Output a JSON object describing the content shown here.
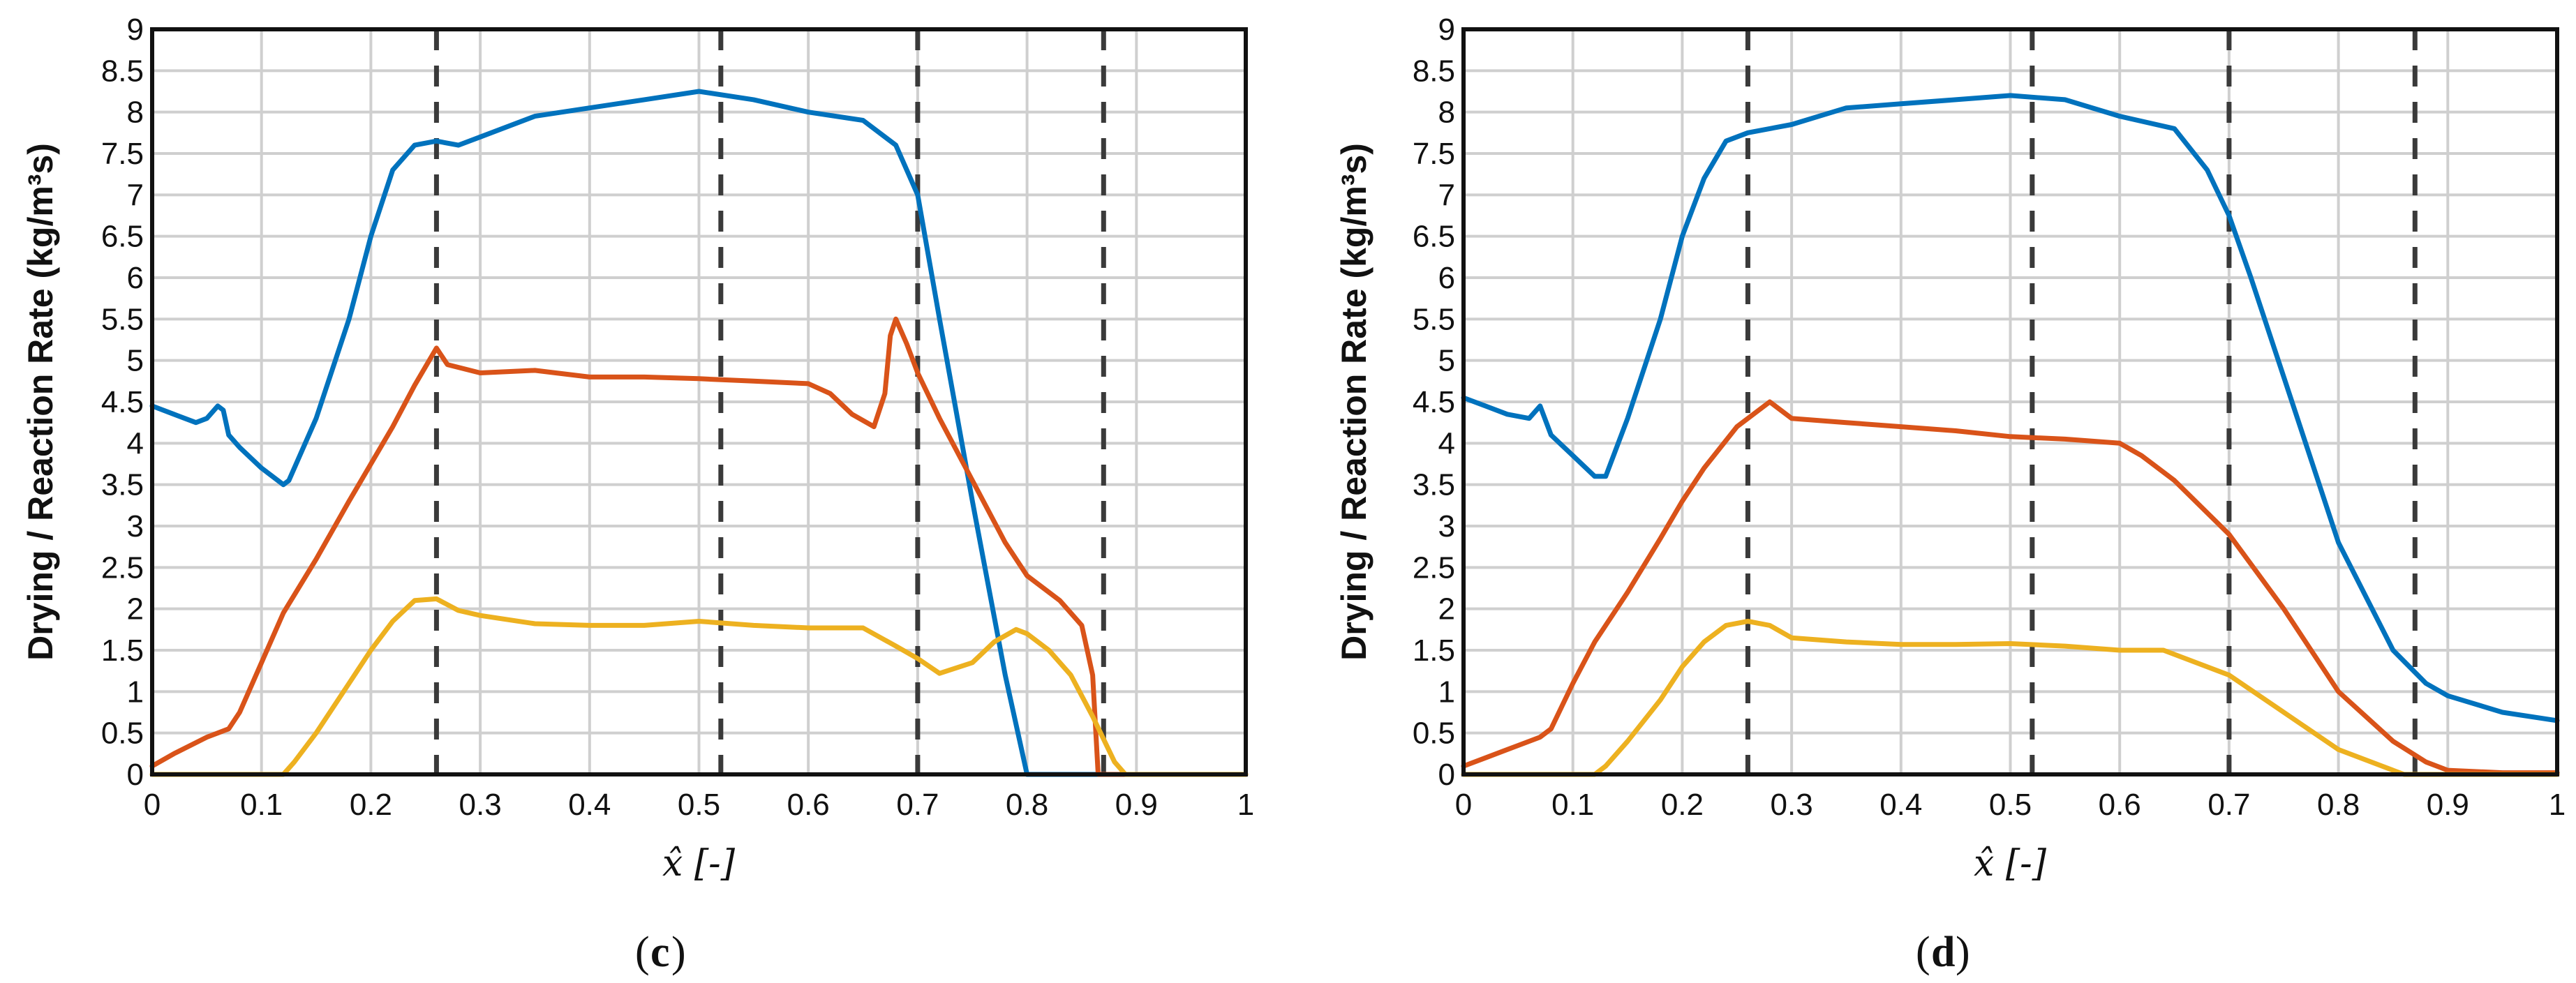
{
  "chart_data": [
    {
      "type": "line",
      "panel_label": "c",
      "xlabel": "x̂ [-]",
      "ylabel": "Drying / Reaction Rate (kg/m³s)",
      "xlim": [
        0,
        1
      ],
      "ylim": [
        0,
        9
      ],
      "xticks": [
        0,
        0.1,
        0.2,
        0.3,
        0.4,
        0.5,
        0.6,
        0.7,
        0.8,
        0.9,
        1
      ],
      "yticks": [
        0,
        0.5,
        1,
        1.5,
        2,
        2.5,
        3,
        3.5,
        4,
        4.5,
        5,
        5.5,
        6,
        6.5,
        7,
        7.5,
        8,
        8.5,
        9
      ],
      "grid": true,
      "vertical_dashed_lines": [
        0.26,
        0.52,
        0.7,
        0.87
      ],
      "series": [
        {
          "color": "#0072BD",
          "x": [
            0,
            0.02,
            0.04,
            0.05,
            0.06,
            0.065,
            0.07,
            0.08,
            0.1,
            0.12,
            0.125,
            0.15,
            0.18,
            0.2,
            0.22,
            0.24,
            0.26,
            0.28,
            0.3,
            0.35,
            0.4,
            0.45,
            0.5,
            0.55,
            0.6,
            0.65,
            0.68,
            0.7,
            0.72,
            0.75,
            0.78,
            0.8,
            0.85,
            0.9,
            1.0
          ],
          "y": [
            4.45,
            4.35,
            4.25,
            4.3,
            4.45,
            4.4,
            4.1,
            3.95,
            3.7,
            3.5,
            3.55,
            4.3,
            5.5,
            6.5,
            7.3,
            7.6,
            7.65,
            7.6,
            7.7,
            7.95,
            8.05,
            8.15,
            8.25,
            8.15,
            8.0,
            7.9,
            7.6,
            7.0,
            5.5,
            3.3,
            1.2,
            0.0,
            0.0,
            0.0,
            0.0
          ]
        },
        {
          "color": "#D95319",
          "x": [
            0,
            0.02,
            0.05,
            0.07,
            0.08,
            0.1,
            0.12,
            0.15,
            0.18,
            0.2,
            0.22,
            0.24,
            0.26,
            0.27,
            0.3,
            0.35,
            0.4,
            0.45,
            0.5,
            0.55,
            0.6,
            0.62,
            0.64,
            0.66,
            0.67,
            0.675,
            0.68,
            0.69,
            0.7,
            0.72,
            0.75,
            0.78,
            0.8,
            0.83,
            0.85,
            0.86,
            0.865,
            0.87,
            0.9,
            1.0
          ],
          "y": [
            0.1,
            0.25,
            0.45,
            0.55,
            0.75,
            1.35,
            1.95,
            2.6,
            3.3,
            3.75,
            4.2,
            4.7,
            5.15,
            4.95,
            4.85,
            4.88,
            4.8,
            4.8,
            4.78,
            4.75,
            4.72,
            4.6,
            4.35,
            4.2,
            4.6,
            5.3,
            5.5,
            5.2,
            4.85,
            4.3,
            3.55,
            2.8,
            2.4,
            2.1,
            1.8,
            1.2,
            0.0,
            0.0,
            0.0,
            0.0
          ]
        },
        {
          "color": "#EDB120",
          "x": [
            0,
            0.1,
            0.12,
            0.13,
            0.15,
            0.18,
            0.2,
            0.22,
            0.24,
            0.26,
            0.28,
            0.3,
            0.35,
            0.4,
            0.45,
            0.5,
            0.55,
            0.6,
            0.65,
            0.68,
            0.7,
            0.72,
            0.75,
            0.77,
            0.79,
            0.8,
            0.82,
            0.84,
            0.86,
            0.88,
            0.89,
            0.9,
            1.0
          ],
          "y": [
            0.0,
            0.0,
            0.0,
            0.15,
            0.5,
            1.1,
            1.5,
            1.85,
            2.1,
            2.12,
            1.98,
            1.92,
            1.82,
            1.8,
            1.8,
            1.85,
            1.8,
            1.77,
            1.77,
            1.55,
            1.4,
            1.22,
            1.35,
            1.6,
            1.75,
            1.7,
            1.5,
            1.2,
            0.7,
            0.15,
            0.0,
            0.0,
            0.0
          ]
        }
      ]
    },
    {
      "type": "line",
      "panel_label": "d",
      "xlabel": "x̂ [-]",
      "ylabel": "Drying / Reaction Rate (kg/m³s)",
      "xlim": [
        0,
        1
      ],
      "ylim": [
        0,
        9
      ],
      "xticks": [
        0,
        0.1,
        0.2,
        0.3,
        0.4,
        0.5,
        0.6,
        0.7,
        0.8,
        0.9,
        1
      ],
      "yticks": [
        0,
        0.5,
        1,
        1.5,
        2,
        2.5,
        3,
        3.5,
        4,
        4.5,
        5,
        5.5,
        6,
        6.5,
        7,
        7.5,
        8,
        8.5,
        9
      ],
      "grid": true,
      "vertical_dashed_lines": [
        0.26,
        0.52,
        0.7,
        0.87
      ],
      "series": [
        {
          "color": "#0072BD",
          "x": [
            0,
            0.02,
            0.04,
            0.06,
            0.07,
            0.08,
            0.1,
            0.12,
            0.13,
            0.15,
            0.18,
            0.2,
            0.22,
            0.24,
            0.26,
            0.3,
            0.35,
            0.4,
            0.45,
            0.5,
            0.55,
            0.6,
            0.65,
            0.68,
            0.7,
            0.72,
            0.75,
            0.78,
            0.8,
            0.85,
            0.88,
            0.9,
            0.95,
            1.0
          ],
          "y": [
            4.55,
            4.45,
            4.35,
            4.3,
            4.45,
            4.1,
            3.85,
            3.6,
            3.6,
            4.3,
            5.5,
            6.5,
            7.2,
            7.65,
            7.75,
            7.85,
            8.05,
            8.1,
            8.15,
            8.2,
            8.15,
            7.95,
            7.8,
            7.3,
            6.75,
            6.0,
            4.8,
            3.6,
            2.8,
            1.5,
            1.1,
            0.95,
            0.75,
            0.65
          ]
        },
        {
          "color": "#D95319",
          "x": [
            0,
            0.02,
            0.05,
            0.07,
            0.08,
            0.1,
            0.12,
            0.15,
            0.18,
            0.2,
            0.22,
            0.25,
            0.28,
            0.3,
            0.35,
            0.4,
            0.45,
            0.5,
            0.55,
            0.6,
            0.62,
            0.65,
            0.7,
            0.75,
            0.8,
            0.85,
            0.88,
            0.9,
            0.95,
            1.0
          ],
          "y": [
            0.1,
            0.2,
            0.35,
            0.45,
            0.55,
            1.1,
            1.6,
            2.2,
            2.85,
            3.3,
            3.7,
            4.2,
            4.5,
            4.3,
            4.25,
            4.2,
            4.15,
            4.08,
            4.05,
            4.0,
            3.85,
            3.55,
            2.9,
            2.0,
            1.0,
            0.4,
            0.15,
            0.05,
            0.02,
            0.02
          ]
        },
        {
          "color": "#EDB120",
          "x": [
            0,
            0.1,
            0.12,
            0.13,
            0.15,
            0.18,
            0.2,
            0.22,
            0.24,
            0.26,
            0.28,
            0.3,
            0.35,
            0.4,
            0.45,
            0.5,
            0.55,
            0.6,
            0.64,
            0.66,
            0.7,
            0.75,
            0.8,
            0.85,
            0.86,
            0.9,
            1.0
          ],
          "y": [
            0.0,
            0.0,
            0.0,
            0.1,
            0.4,
            0.9,
            1.3,
            1.6,
            1.8,
            1.85,
            1.8,
            1.65,
            1.6,
            1.57,
            1.57,
            1.58,
            1.55,
            1.5,
            1.5,
            1.4,
            1.2,
            0.75,
            0.3,
            0.05,
            0.0,
            0.0,
            0.0
          ]
        }
      ]
    }
  ]
}
